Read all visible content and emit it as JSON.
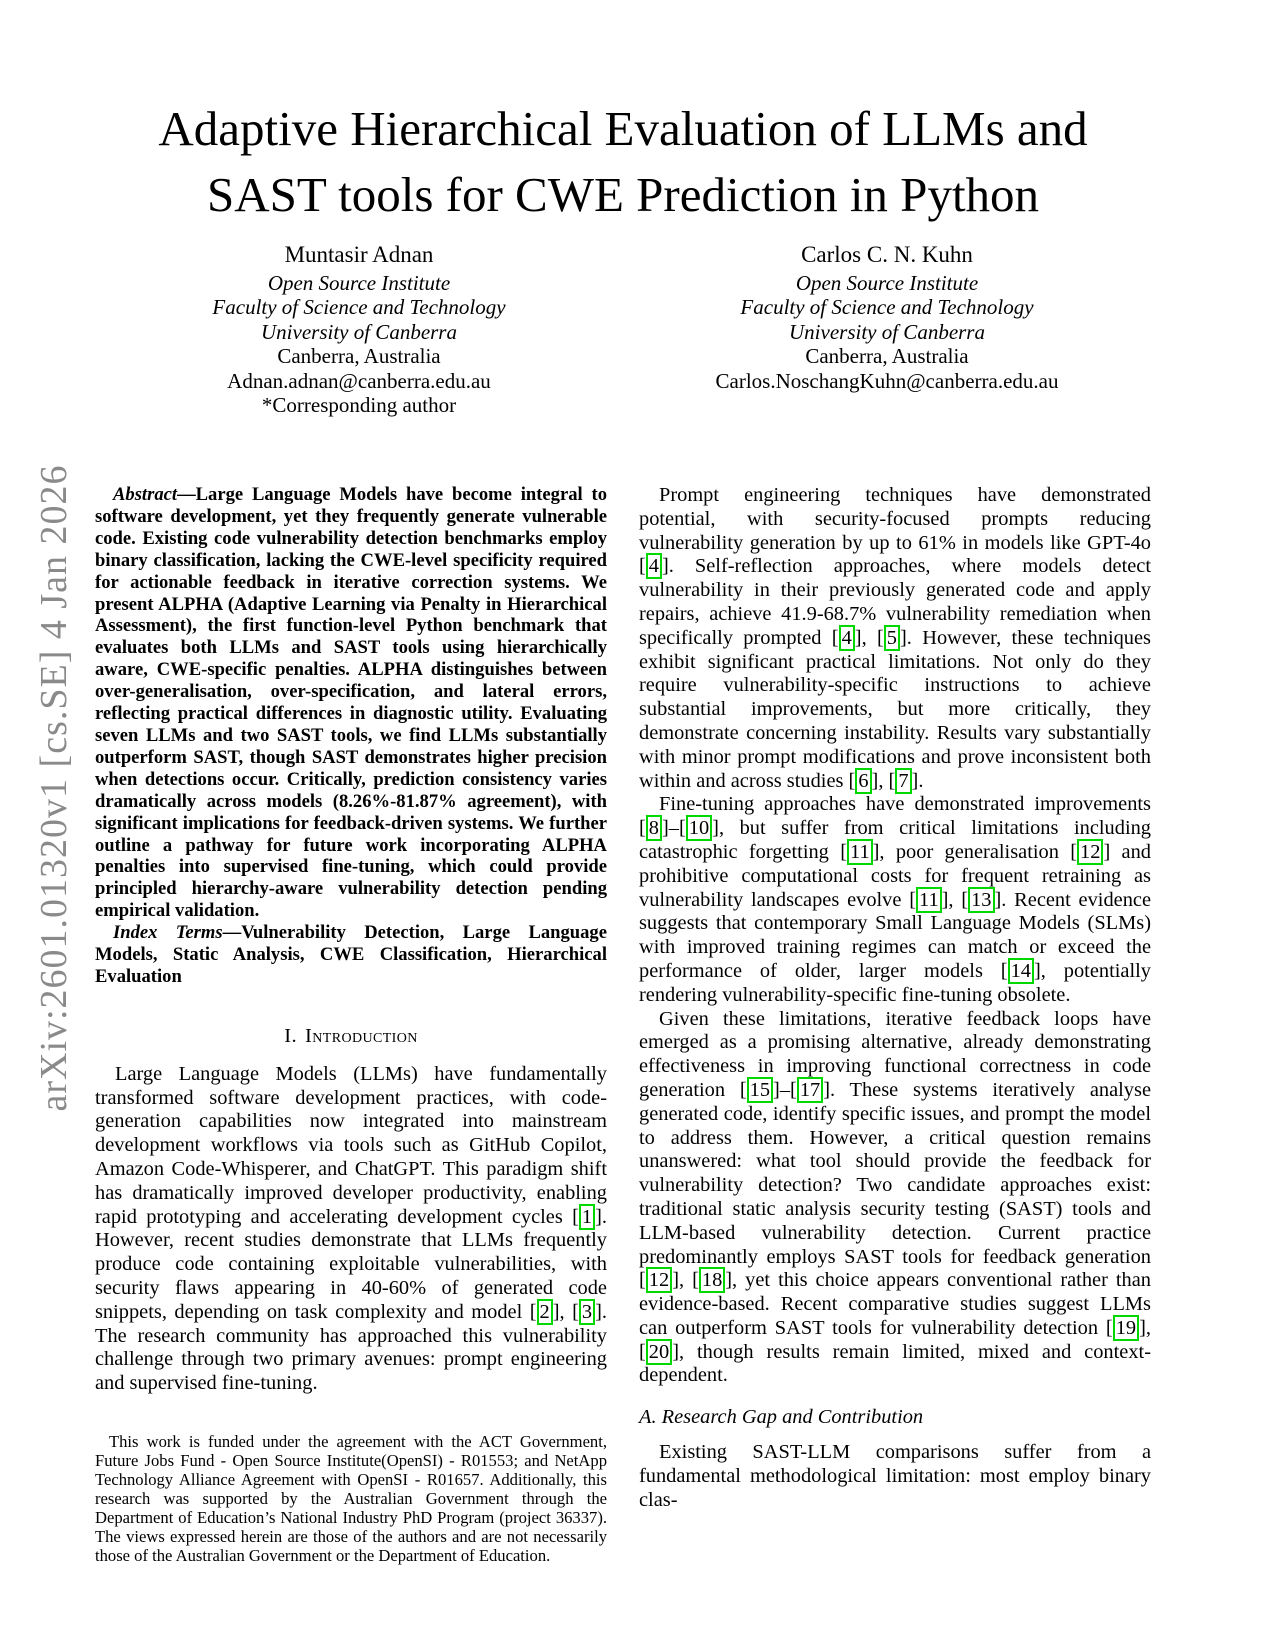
{
  "watermark": "arXiv:2601.01320v1  [cs.SE]  4 Jan 2026",
  "title": {
    "line1": "Adaptive Hierarchical Evaluation of LLMs and",
    "line2": "SAST tools for CWE Prediction in Python"
  },
  "authors": [
    {
      "name": "Muntasir Adnan",
      "institute": "Open Source Institute",
      "faculty": "Faculty of Science and Technology",
      "university": "University of Canberra",
      "location": "Canberra, Australia",
      "email": "Adnan.adnan@canberra.edu.au",
      "note": "*Corresponding author"
    },
    {
      "name": "Carlos C. N. Kuhn",
      "institute": "Open Source Institute",
      "faculty": "Faculty of Science and Technology",
      "university": "University of Canberra",
      "location": "Canberra, Australia",
      "email": "Carlos.NoschangKuhn@canberra.edu.au"
    }
  ],
  "abstract": {
    "label": "Abstract",
    "text": "—Large Language Models have become integral to software development, yet they frequently generate vulnerable code. Existing code vulnerability detection benchmarks employ binary classification, lacking the CWE-level specificity required for actionable feedback in iterative correction systems. We present ALPHA (Adaptive Learning via Penalty in Hierarchical Assessment), the first function-level Python benchmark that evaluates both LLMs and SAST tools using hierarchically aware, CWE-specific penalties. ALPHA distinguishes between over-generalisation, over-specification, and lateral errors, reflecting practical differences in diagnostic utility. Evaluating seven LLMs and two SAST tools, we find LLMs substantially outperform SAST, though SAST demonstrates higher precision when detections occur. Critically, prediction consistency varies dramatically across models (8.26%-81.87% agreement), with significant implications for feedback-driven systems. We further outline a pathway for future work incorporating ALPHA penalties into supervised fine-tuning, which could provide principled hierarchy-aware vulnerability detection pending empirical validation."
  },
  "index_terms": {
    "label": "Index Terms",
    "text": "—Vulnerability Detection, Large Language Models, Static Analysis, CWE Classification, Hierarchical Evaluation"
  },
  "introduction": {
    "heading_number": "I.",
    "heading_title": "Introduction",
    "paragraph_1": "Large Language Models (LLMs) have fundamentally transformed software development practices, with code-generation capabilities now integrated into mainstream development workflows via tools such as GitHub Copilot, Amazon Code-Whisperer, and ChatGPT. This paradigm shift has dramatically improved developer productivity, enabling rapid prototyping and accelerating development cycles [1]. However, recent studies demonstrate that LLMs frequently produce code containing exploitable vulnerabilities, with security flaws appearing in 40-60% of generated code snippets, depending on task complexity and model [2], [3]. The research community has approached this vulnerability challenge through two primary avenues: prompt engineering and supervised fine-tuning.",
    "paragraph_2": "Prompt engineering techniques have demonstrated potential, with security-focused prompts reducing vulnerability generation by up to 61% in models like GPT-4o [4]. Self-reflection approaches, where models detect vulnerability in their previously generated code and apply repairs, achieve 41.9-68.7% vulnerability remediation when specifically prompted [4], [5]. However, these techniques exhibit significant practical limitations. Not only do they require vulnerability-specific instructions to achieve substantial improvements, but more critically, they demonstrate concerning instability. Results vary substantially with minor prompt modifications and prove inconsistent both within and across studies [6], [7].",
    "paragraph_3": "Fine-tuning approaches have demonstrated improvements [8]–[10], but suffer from critical limitations including catastrophic forgetting [11], poor generalisation [12] and prohibitive computational costs for frequent retraining as vulnerability landscapes evolve [11], [13]. Recent evidence suggests that contemporary Small Language Models (SLMs) with improved training regimes can match or exceed the performance of older, larger models [14], potentially rendering vulnerability-specific fine-tuning obsolete.",
    "paragraph_4": "Given these limitations, iterative feedback loops have emerged as a promising alternative, already demonstrating effectiveness in improving functional correctness in code generation [15]–[17]. These systems iteratively analyse generated code, identify specific issues, and prompt the model to address them. However, a critical question remains unanswered: what tool should provide the feedback for vulnerability detection? Two candidate approaches exist: traditional static analysis security testing (SAST) tools and LLM-based vulnerability detection. Current practice predominantly employs SAST tools for feedback generation [12], [18], yet this choice appears conventional rather than evidence-based. Recent comparative studies suggest LLMs can outperform SAST tools for vulnerability detection [19], [20], though results remain limited, mixed and context-dependent."
  },
  "research_gap": {
    "heading": "A. Research Gap and Contribution",
    "paragraph_1": "Existing SAST-LLM comparisons suffer from a fundamental methodological limitation: most employ binary clas-"
  },
  "footnote": "This work is funded under the agreement with the ACT Government, Future Jobs Fund - Open Source Institute(OpenSI) - R01553; and NetApp Technology Alliance Agreement with OpenSI - R01657. Additionally, this research was supported by the Australian Government through the Department of Education’s National Industry PhD Program (project 36337). The views expressed herein are those of the authors and are not necessarily those of the Australian Government or the Department of Education.",
  "colors": {
    "citation_box_green": "#00d800",
    "watermark_gray": "#8a8a8a"
  }
}
